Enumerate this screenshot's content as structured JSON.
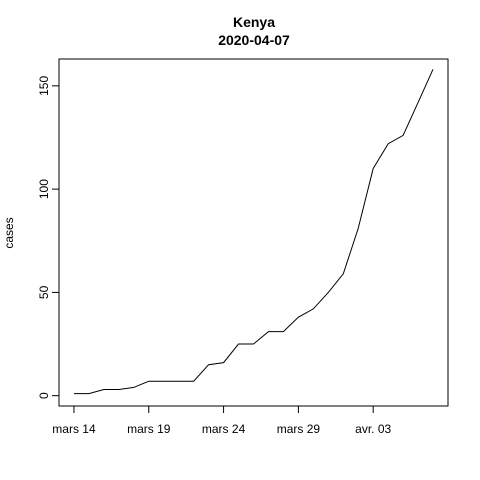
{
  "chart_data": {
    "type": "line",
    "title": "Kenya",
    "subtitle": "2020-04-07",
    "xlabel": "",
    "ylabel": "cases",
    "x_ticks": [
      "mars 14",
      "mars 19",
      "mars 24",
      "mars 29",
      "avr. 03"
    ],
    "y_ticks": [
      0,
      50,
      100,
      150
    ],
    "xlim": [
      "2020-03-13",
      "2020-04-08"
    ],
    "ylim": [
      -5,
      163
    ],
    "grid": false,
    "series": [
      {
        "x": [
          "2020-03-14",
          "2020-03-15",
          "2020-03-16",
          "2020-03-17",
          "2020-03-18",
          "2020-03-19",
          "2020-03-20",
          "2020-03-21",
          "2020-03-22",
          "2020-03-23",
          "2020-03-24",
          "2020-03-25",
          "2020-03-26",
          "2020-03-27",
          "2020-03-28",
          "2020-03-29",
          "2020-03-30",
          "2020-03-31",
          "2020-04-01",
          "2020-04-02",
          "2020-04-03",
          "2020-04-04",
          "2020-04-05",
          "2020-04-06",
          "2020-04-07"
        ],
        "values": [
          1,
          1,
          3,
          3,
          4,
          7,
          7,
          7,
          7,
          15,
          16,
          25,
          25,
          31,
          31,
          38,
          42,
          50,
          59,
          81,
          110,
          122,
          126,
          142,
          158
        ]
      }
    ]
  }
}
